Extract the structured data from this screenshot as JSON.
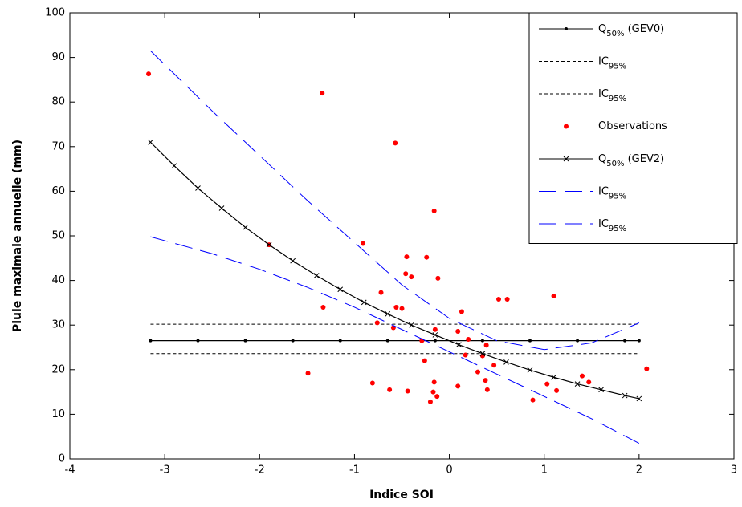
{
  "chart_data": {
    "type": "line",
    "xlabel": "Indice SOI",
    "ylabel": "Pluie maximale annuelle (mm)",
    "xlim": [
      -4,
      3
    ],
    "xticks": [
      -4,
      -3,
      -2,
      -1,
      0,
      1,
      2,
      3
    ],
    "ylim": [
      0,
      100
    ],
    "yticks": [
      0,
      10,
      20,
      30,
      40,
      50,
      60,
      70,
      80,
      90,
      100
    ],
    "legend": "upper right",
    "series": [
      {
        "name": "Q50% (GEV0)",
        "color": "#000000",
        "line": "solid",
        "marker": "dot",
        "x": [
          -3.15,
          -2.65,
          -2.15,
          -1.65,
          -1.15,
          -0.65,
          -0.15,
          0.35,
          0.85,
          1.35,
          1.85,
          2.0
        ],
        "values": [
          26.5,
          26.5,
          26.5,
          26.5,
          26.5,
          26.5,
          26.5,
          26.5,
          26.5,
          26.5,
          26.5,
          26.5
        ]
      },
      {
        "name": "IC95%",
        "color": "#000000",
        "line": "dotted",
        "marker": "none",
        "x": [
          -3.15,
          2.0
        ],
        "values": [
          30.2,
          30.2
        ]
      },
      {
        "name": "IC95%",
        "color": "#000000",
        "line": "dotted",
        "marker": "none",
        "x": [
          -3.15,
          2.0
        ],
        "values": [
          23.6,
          23.6
        ]
      },
      {
        "name": "Observations",
        "color": "#ff0000",
        "line": "none",
        "marker": "dot",
        "x": [
          -3.17,
          -1.34,
          -1.9,
          -1.49,
          -1.33,
          -0.91,
          -0.57,
          -0.16,
          -0.72,
          -0.76,
          -0.81,
          -0.63,
          -0.59,
          -0.56,
          -0.5,
          -0.45,
          -0.46,
          -0.4,
          -0.44,
          -0.24,
          -0.12,
          -0.29,
          -0.26,
          -0.2,
          -0.16,
          -0.15,
          -0.17,
          -0.13,
          0.09,
          0.09,
          0.13,
          0.17,
          0.2,
          0.3,
          0.35,
          0.38,
          0.4,
          0.39,
          0.47,
          0.52,
          0.61,
          0.88,
          1.03,
          1.13,
          1.1,
          1.4,
          1.47,
          2.08
        ],
        "values": [
          86.3,
          82.0,
          48.0,
          19.2,
          34.0,
          48.3,
          70.8,
          55.6,
          37.3,
          30.5,
          17.0,
          15.5,
          29.4,
          34.0,
          33.7,
          45.3,
          41.5,
          40.8,
          15.2,
          45.2,
          40.5,
          26.5,
          22.0,
          12.8,
          17.2,
          29.0,
          15.0,
          14.0,
          28.6,
          16.3,
          33.0,
          23.3,
          26.8,
          19.5,
          23.1,
          17.6,
          15.5,
          25.5,
          21.0,
          35.8,
          35.8,
          13.2,
          16.8,
          15.3,
          36.5,
          18.6,
          17.2,
          20.2
        ]
      },
      {
        "name": "Q50% (GEV2)",
        "color": "#000000",
        "line": "solid",
        "marker": "x",
        "x": [
          -3.15,
          -2.9,
          -2.65,
          -2.4,
          -2.15,
          -1.9,
          -1.65,
          -1.4,
          -1.15,
          -0.9,
          -0.65,
          -0.4,
          -0.15,
          0.1,
          0.35,
          0.6,
          0.85,
          1.1,
          1.35,
          1.6,
          1.85,
          2.0
        ],
        "values": [
          71.0,
          65.7,
          60.7,
          56.2,
          51.9,
          48.0,
          44.4,
          41.1,
          38.0,
          35.1,
          32.5,
          30.0,
          27.8,
          25.6,
          23.6,
          21.7,
          19.9,
          18.3,
          16.8,
          15.5,
          14.2,
          13.5
        ]
      },
      {
        "name": "IC95%",
        "color": "#0000ff",
        "line": "dashed",
        "marker": "none",
        "x": [
          -3.15,
          -2.5,
          -2.0,
          -1.5,
          -1.0,
          -0.5,
          0.0,
          0.5,
          1.0,
          1.5,
          2.0
        ],
        "values": [
          91.5,
          78.0,
          68.0,
          58.0,
          48.5,
          39.0,
          31.5,
          26.5,
          24.5,
          26.0,
          30.5
        ]
      },
      {
        "name": "IC95%",
        "color": "#0000ff",
        "line": "dashed",
        "marker": "none",
        "x": [
          -3.15,
          -2.5,
          -2.0,
          -1.5,
          -1.0,
          -0.5,
          0.0,
          0.5,
          1.0,
          1.5,
          2.0
        ],
        "values": [
          49.8,
          46.0,
          42.5,
          38.5,
          34.0,
          29.0,
          24.0,
          19.0,
          14.0,
          9.0,
          3.5
        ]
      }
    ]
  }
}
